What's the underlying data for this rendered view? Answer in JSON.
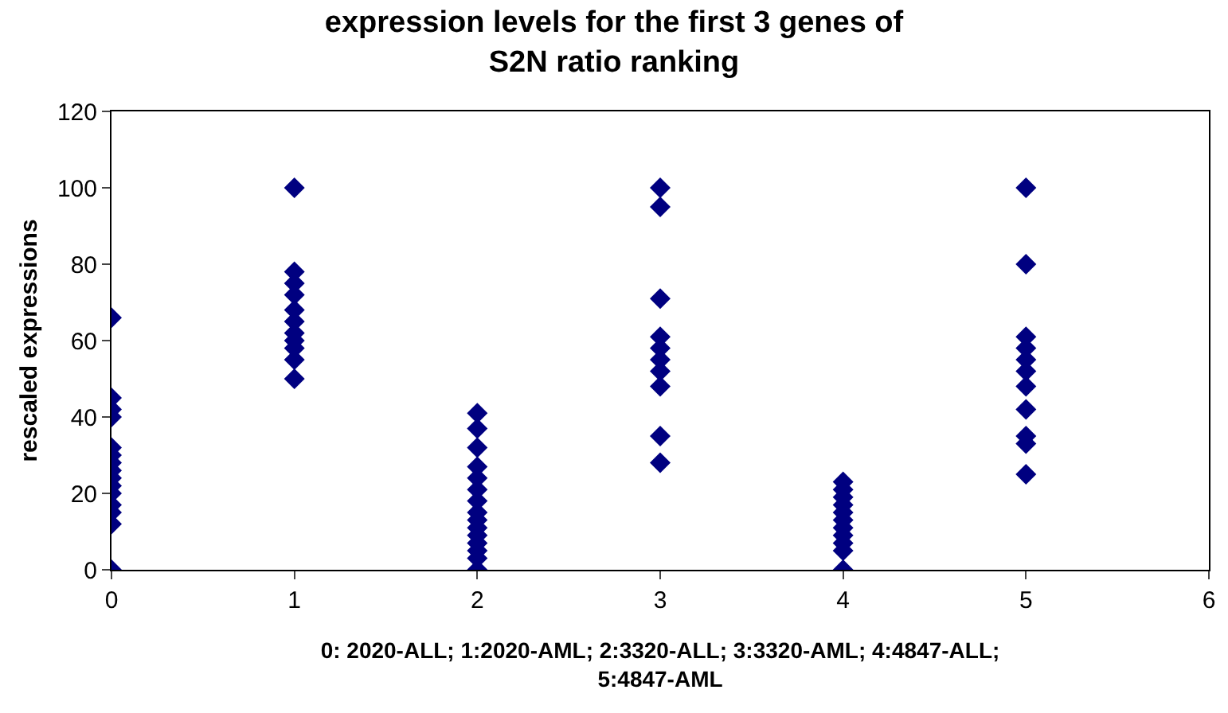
{
  "chart_data": {
    "type": "scatter",
    "title": "expression levels for the first 3 genes of S2N ratio ranking",
    "xlabel": "0: 2020-ALL; 1:2020-AML; 2:3320-ALL; 3:3320-AML; 4:4847-ALL; 5:4847-AML",
    "ylabel": "rescaled expressions",
    "series": [
      {
        "color": "#000080",
        "x": [
          0,
          0,
          0,
          0,
          0,
          0,
          0,
          0,
          0,
          0,
          0,
          0,
          0,
          0,
          0,
          1,
          1,
          1,
          1,
          1,
          1,
          1,
          1,
          1,
          1,
          1,
          2,
          2,
          2,
          2,
          2,
          2,
          2,
          2,
          2,
          2,
          2,
          2,
          2,
          2,
          2,
          3,
          3,
          3,
          3,
          3,
          3,
          3,
          3,
          3,
          3,
          4,
          4,
          4,
          4,
          4,
          4,
          4,
          4,
          4,
          4,
          4,
          5,
          5,
          5,
          5,
          5,
          5,
          5,
          5,
          5,
          5,
          5
        ],
        "values": [
          66,
          45,
          42,
          40,
          32,
          30,
          28,
          26,
          24,
          22,
          20,
          17,
          15,
          12,
          0,
          100,
          78,
          75,
          72,
          68,
          65,
          62,
          60,
          58,
          55,
          50,
          41,
          37,
          32,
          27,
          24,
          21,
          18,
          15,
          13,
          11,
          9,
          7,
          5,
          3,
          0,
          100,
          95,
          71,
          61,
          58,
          55,
          52,
          48,
          35,
          28,
          23,
          21,
          19,
          17,
          15,
          13,
          11,
          9,
          7,
          5,
          0,
          100,
          80,
          61,
          58,
          55,
          52,
          48,
          42,
          35,
          33,
          25
        ]
      }
    ],
    "xlim": [
      0,
      6
    ],
    "xticks": [
      0,
      1,
      2,
      3,
      4,
      5,
      6
    ],
    "ylim": [
      0,
      120
    ],
    "yticks": [
      0,
      20,
      40,
      60,
      80,
      100,
      120
    ],
    "marker": "diamond"
  }
}
